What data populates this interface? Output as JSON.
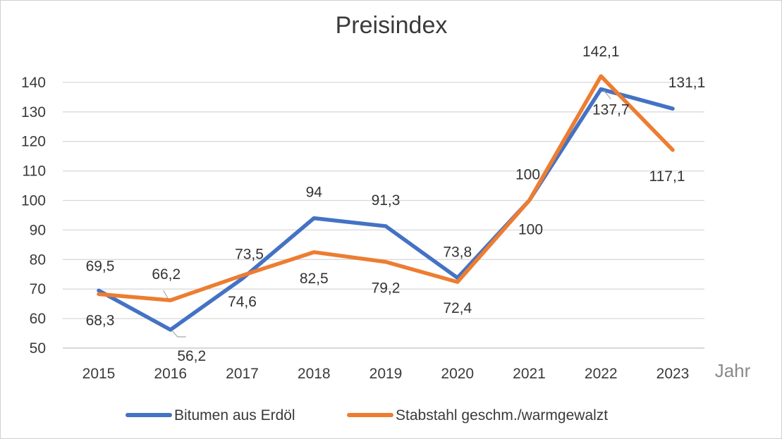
{
  "chart_data": {
    "type": "line",
    "title": "Preisindex",
    "xlabel": "Jahr",
    "ylabel": "",
    "ylim": [
      50,
      140
    ],
    "yticks": [
      50,
      60,
      70,
      80,
      90,
      100,
      110,
      120,
      130,
      140
    ],
    "categories": [
      "2015",
      "2016",
      "2017",
      "2018",
      "2019",
      "2020",
      "2021",
      "2022",
      "2023"
    ],
    "grid": true,
    "legend_position": "bottom",
    "series": [
      {
        "name": "Bitumen aus Erdöl",
        "color": "#4472C4",
        "values": [
          69.5,
          56.2,
          73.5,
          94,
          91.3,
          73.8,
          100,
          137.7,
          131.1
        ],
        "labels": [
          "69,5",
          "56,2",
          "73,5",
          "94",
          "91,3",
          "73,8",
          "100",
          "137,7",
          "131,1"
        ]
      },
      {
        "name": "Stabstahl geschm./warmgewalzt",
        "color": "#ED7D31",
        "values": [
          68.3,
          66.2,
          74.6,
          82.5,
          79.2,
          72.4,
          100,
          142.1,
          117.1
        ],
        "labels": [
          "68,3",
          "66,2",
          "74,6",
          "82,5",
          "79,2",
          "72,4",
          "100",
          "142,1",
          "117,1"
        ]
      }
    ]
  }
}
